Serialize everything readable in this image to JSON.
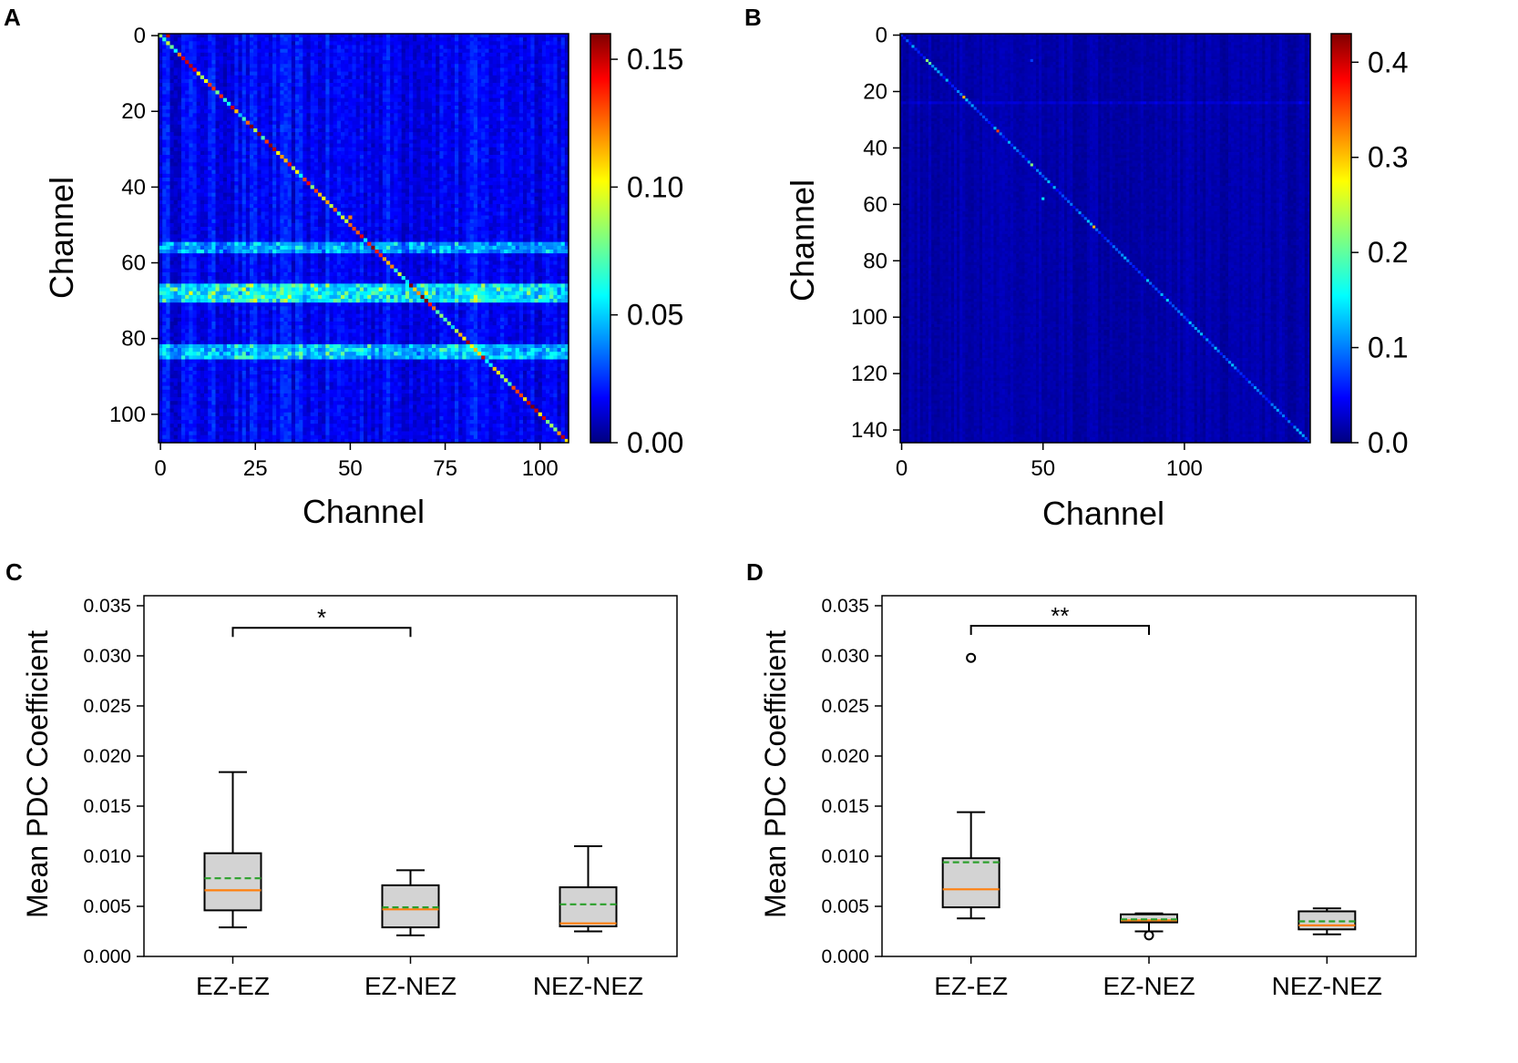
{
  "colors": {
    "jet": [
      "#00007f",
      "#0000ff",
      "#007fff",
      "#00ffff",
      "#7fff7f",
      "#ffff00",
      "#ff7f00",
      "#ff0000",
      "#7f0000"
    ],
    "box_fill": "#d3d3d3",
    "median": "#ff7f0e",
    "mean": "#2ca02c"
  },
  "chart_data": [
    {
      "panel": "A",
      "type": "heatmap",
      "xlabel": "Channel",
      "ylabel": "Channel",
      "n_channels": 108,
      "xticks": [
        0,
        25,
        50,
        75,
        100
      ],
      "xtick_labels": [
        "0",
        "25",
        "50",
        "75",
        "100"
      ],
      "yticks": [
        0,
        20,
        40,
        60,
        80,
        100
      ],
      "ytick_labels": [
        "0",
        "20",
        "40",
        "60",
        "80",
        "100"
      ],
      "colorbar": {
        "min": 0.0,
        "max": 0.16,
        "ticks": [
          0.0,
          0.05,
          0.1,
          0.15
        ],
        "tick_labels": [
          "0.00",
          "0.05",
          "0.10",
          "0.15"
        ]
      },
      "diagonal_peak_value": 0.14,
      "background_value": 0.01,
      "high_rows": [
        {
          "from": 55,
          "to": 57,
          "value": 0.05
        },
        {
          "from": 66,
          "to": 70,
          "value": 0.08
        },
        {
          "from": 82,
          "to": 85,
          "value": 0.06
        }
      ],
      "hotspots": [
        {
          "row": 0,
          "col": 2,
          "value": 0.15
        },
        {
          "row": 31,
          "col": 31,
          "value": 0.1
        },
        {
          "row": 34,
          "col": 34,
          "value": 0.14
        },
        {
          "row": 48,
          "col": 50,
          "value": 0.12
        },
        {
          "row": 67,
          "col": 58,
          "value": 0.1
        },
        {
          "row": 68,
          "col": 70,
          "value": 0.1
        },
        {
          "row": 90,
          "col": 90,
          "value": 0.08
        },
        {
          "row": 106,
          "col": 106,
          "value": 0.15
        }
      ]
    },
    {
      "panel": "B",
      "type": "heatmap",
      "xlabel": "Channel",
      "ylabel": "Channel",
      "n_channels": 145,
      "xticks": [
        0,
        50,
        100
      ],
      "xtick_labels": [
        "0",
        "50",
        "100"
      ],
      "yticks": [
        0,
        20,
        40,
        60,
        80,
        100,
        120,
        140
      ],
      "ytick_labels": [
        "0",
        "20",
        "40",
        "60",
        "80",
        "100",
        "120",
        "140"
      ],
      "colorbar": {
        "min": 0.0,
        "max": 0.43,
        "ticks": [
          0.0,
          0.1,
          0.2,
          0.3,
          0.4
        ],
        "tick_labels": [
          "0.0",
          "0.1",
          "0.2",
          "0.3",
          "0.4"
        ]
      },
      "diagonal_peak_value": 0.12,
      "background_value": 0.01,
      "high_rows": [
        {
          "from": 24,
          "to": 24,
          "value": 0.03
        }
      ],
      "hotspots": [
        {
          "row": 9,
          "col": 9,
          "value": 0.22
        },
        {
          "row": 10,
          "col": 10,
          "value": 0.2
        },
        {
          "row": 22,
          "col": 22,
          "value": 0.3
        },
        {
          "row": 34,
          "col": 34,
          "value": 0.35
        },
        {
          "row": 46,
          "col": 46,
          "value": 0.22
        },
        {
          "row": 58,
          "col": 50,
          "value": 0.15
        },
        {
          "row": 68,
          "col": 68,
          "value": 0.3
        },
        {
          "row": 9,
          "col": 46,
          "value": 0.08
        }
      ]
    },
    {
      "panel": "C",
      "type": "box",
      "ylabel": "Mean PDC Coefficient",
      "ylim": [
        0.0,
        0.036
      ],
      "yticks": [
        0.0,
        0.005,
        0.01,
        0.015,
        0.02,
        0.025,
        0.03,
        0.035
      ],
      "ytick_labels": [
        "0.000",
        "0.005",
        "0.010",
        "0.015",
        "0.020",
        "0.025",
        "0.030",
        "0.035"
      ],
      "categories": [
        "EZ-EZ",
        "EZ-NEZ",
        "NEZ-NEZ"
      ],
      "boxes": [
        {
          "whisker_low": 0.0029,
          "q1": 0.0046,
          "median": 0.0066,
          "mean": 0.0078,
          "q3": 0.0103,
          "whisker_high": 0.0184,
          "outliers": []
        },
        {
          "whisker_low": 0.0021,
          "q1": 0.0029,
          "median": 0.0047,
          "mean": 0.0049,
          "q3": 0.0071,
          "whisker_high": 0.0086,
          "outliers": []
        },
        {
          "whisker_low": 0.0025,
          "q1": 0.003,
          "median": 0.0033,
          "mean": 0.0052,
          "q3": 0.0069,
          "whisker_high": 0.011,
          "outliers": []
        }
      ],
      "significance": {
        "from": 0,
        "to": 1,
        "y": 0.0328,
        "label": "*"
      }
    },
    {
      "panel": "D",
      "type": "box",
      "ylabel": "Mean PDC Coefficient",
      "ylim": [
        0.0,
        0.036
      ],
      "yticks": [
        0.0,
        0.005,
        0.01,
        0.015,
        0.02,
        0.025,
        0.03,
        0.035
      ],
      "ytick_labels": [
        "0.000",
        "0.005",
        "0.010",
        "0.015",
        "0.020",
        "0.025",
        "0.030",
        "0.035"
      ],
      "categories": [
        "EZ-EZ",
        "EZ-NEZ",
        "NEZ-NEZ"
      ],
      "boxes": [
        {
          "whisker_low": 0.0038,
          "q1": 0.0049,
          "median": 0.0067,
          "mean": 0.0094,
          "q3": 0.0098,
          "whisker_high": 0.0144,
          "outliers": [
            0.0298
          ]
        },
        {
          "whisker_low": 0.0025,
          "q1": 0.0034,
          "median": 0.0036,
          "mean": 0.0037,
          "q3": 0.0042,
          "whisker_high": 0.0043,
          "outliers": [
            0.0021
          ]
        },
        {
          "whisker_low": 0.0022,
          "q1": 0.0027,
          "median": 0.0031,
          "mean": 0.0035,
          "q3": 0.0045,
          "whisker_high": 0.0048,
          "outliers": []
        }
      ],
      "significance": {
        "from": 0,
        "to": 1,
        "y": 0.033,
        "label": "**"
      }
    }
  ]
}
